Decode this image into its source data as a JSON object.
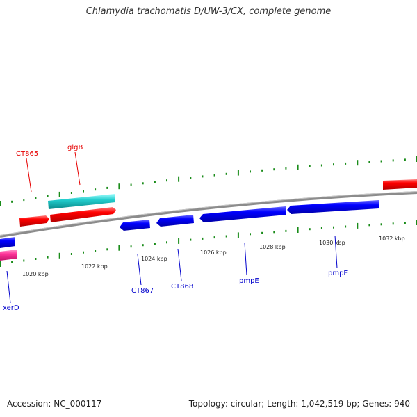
{
  "title": "Chlamydia trachomatis D/UW-3/CX, complete genome",
  "footer": {
    "accession_label": "Accession:",
    "accession": "NC_000117",
    "topology_label": "Topology:",
    "topology": "circular",
    "length_label": "Length:",
    "length": "1,042,519 bp",
    "genes_label": "Genes:",
    "genes": "940"
  },
  "scale": {
    "labels": [
      "1020 kbp",
      "1022 kbp",
      "1024 kbp",
      "1026 kbp",
      "1028 kbp",
      "1030 kbp",
      "1032 kbp"
    ]
  },
  "genes": [
    {
      "name": "CT865",
      "color": "#e60000"
    },
    {
      "name": "glgB",
      "color": "#e60000"
    },
    {
      "name": "xerD",
      "color": "#0000cc"
    },
    {
      "name": "CT867",
      "color": "#0000cc"
    },
    {
      "name": "CT868",
      "color": "#0000cc"
    },
    {
      "name": "pmpE",
      "color": "#0000cc"
    },
    {
      "name": "pmpF",
      "color": "#0000cc"
    }
  ],
  "colors": {
    "forward": "#ff0000",
    "reverse": "#0000ff",
    "rna": "#00cccc",
    "other": "#ff3399",
    "backbone": "#808080",
    "ticks": "#1a8c1a"
  }
}
